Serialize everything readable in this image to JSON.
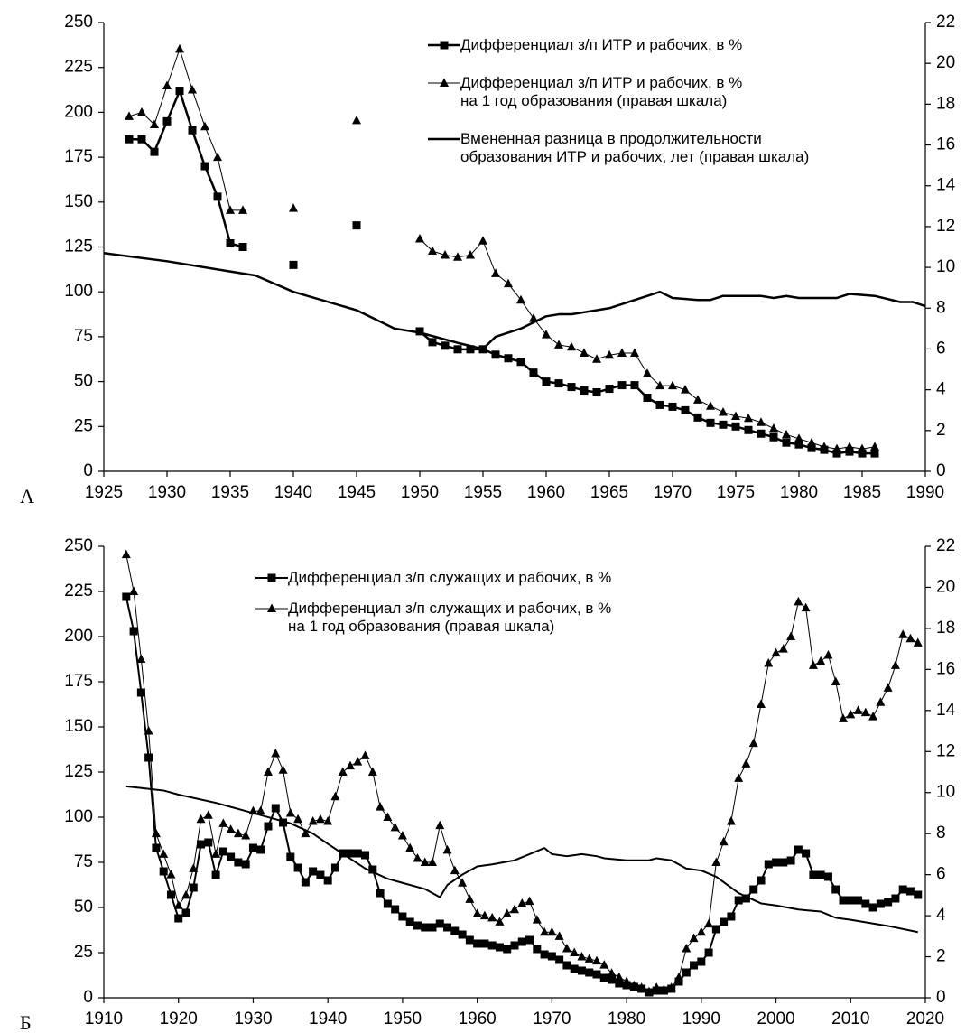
{
  "chart_data": [
    {
      "type": "line",
      "panel_label": "А",
      "xlim": [
        1925,
        1990
      ],
      "xticks": [
        1925,
        1930,
        1935,
        1940,
        1945,
        1950,
        1955,
        1960,
        1965,
        1970,
        1975,
        1980,
        1985,
        1990
      ],
      "ylim": [
        0,
        250
      ],
      "yticks": [
        0,
        25,
        50,
        75,
        100,
        125,
        150,
        175,
        200,
        225,
        250
      ],
      "y2lim": [
        0,
        22
      ],
      "y2ticks": [
        0,
        2,
        4,
        6,
        8,
        10,
        12,
        14,
        16,
        18,
        20,
        22
      ],
      "grid": false,
      "series": [
        {
          "name": "Дифференциал з/п ИТР и рабочих, в %",
          "color": "#000000",
          "marker": "square",
          "line_width": 2.5,
          "axis": "y",
          "x": [
            1927,
            1928,
            1929,
            1930,
            1931,
            1932,
            1933,
            1934,
            1935,
            1936,
            1937,
            1938,
            1939,
            1940,
            1941,
            1942,
            1943,
            1944,
            1945,
            1946,
            1947,
            1948,
            1949,
            1950,
            1951,
            1952,
            1953,
            1954,
            1955,
            1956,
            1957,
            1958,
            1959,
            1960,
            1961,
            1962,
            1963,
            1964,
            1965,
            1966,
            1967,
            1968,
            1969,
            1970,
            1971,
            1972,
            1973,
            1974,
            1975,
            1976,
            1977,
            1978,
            1979,
            1980,
            1981,
            1982,
            1983,
            1984,
            1985,
            1986
          ],
          "values": [
            185,
            185,
            178,
            195,
            212,
            190,
            170,
            153,
            127,
            125,
            null,
            null,
            null,
            115,
            null,
            null,
            null,
            null,
            137,
            null,
            null,
            null,
            null,
            78,
            72,
            70,
            68,
            68,
            68,
            65,
            63,
            61,
            55,
            50,
            49,
            47,
            45,
            44,
            46,
            48,
            48,
            41,
            37,
            36,
            34,
            30,
            27,
            26,
            25,
            23,
            21,
            19,
            16,
            15,
            13,
            12,
            10,
            11,
            10,
            10
          ]
        },
        {
          "name": "Дифференциал з/п ИТР и рабочих, в %\nна 1 год образования (правая шкала)",
          "color": "#000000",
          "marker": "triangle",
          "line_width": 1,
          "axis": "y2",
          "x": [
            1927,
            1928,
            1929,
            1930,
            1931,
            1932,
            1933,
            1934,
            1935,
            1936,
            1937,
            1938,
            1939,
            1940,
            1941,
            1942,
            1943,
            1944,
            1945,
            1946,
            1947,
            1948,
            1949,
            1950,
            1951,
            1952,
            1953,
            1954,
            1955,
            1956,
            1957,
            1958,
            1959,
            1960,
            1961,
            1962,
            1963,
            1964,
            1965,
            1966,
            1967,
            1968,
            1969,
            1970,
            1971,
            1972,
            1973,
            1974,
            1975,
            1976,
            1977,
            1978,
            1979,
            1980,
            1981,
            1982,
            1983,
            1984,
            1985,
            1986
          ],
          "values": [
            17.4,
            17.6,
            17.0,
            18.9,
            20.7,
            18.7,
            16.9,
            15.4,
            12.8,
            12.8,
            null,
            null,
            null,
            12.9,
            null,
            null,
            null,
            null,
            17.2,
            null,
            null,
            null,
            null,
            11.4,
            10.8,
            10.6,
            10.5,
            10.6,
            11.3,
            9.7,
            9.2,
            8.4,
            7.5,
            6.7,
            6.2,
            6.1,
            5.8,
            5.5,
            5.7,
            5.8,
            5.8,
            4.8,
            4.2,
            4.2,
            4.0,
            3.5,
            3.2,
            2.9,
            2.7,
            2.6,
            2.4,
            2.1,
            1.8,
            1.6,
            1.4,
            1.2,
            1.1,
            1.2,
            1.1,
            1.2
          ]
        },
        {
          "name": "Вмененная разница в продолжительности\nобразования ИТР и рабочих, лет (правая шкала)",
          "color": "#000000",
          "marker": "none",
          "line_width": 2.5,
          "axis": "y2",
          "x": [
            1925,
            1930,
            1935,
            1937,
            1940,
            1945,
            1948,
            1950,
            1953,
            1955,
            1956,
            1958,
            1960,
            1961,
            1962,
            1965,
            1969,
            1970,
            1972,
            1973,
            1974,
            1977,
            1978,
            1979,
            1980,
            1983,
            1984,
            1986,
            1988,
            1989,
            1990
          ],
          "values": [
            10.7,
            10.3,
            9.8,
            9.6,
            8.8,
            7.9,
            7.0,
            6.8,
            6.3,
            6.0,
            6.6,
            7.0,
            7.6,
            7.7,
            7.7,
            8.0,
            8.8,
            8.5,
            8.4,
            8.4,
            8.6,
            8.6,
            8.5,
            8.6,
            8.5,
            8.5,
            8.7,
            8.6,
            8.3,
            8.3,
            8.1
          ]
        }
      ]
    },
    {
      "type": "line",
      "panel_label": "Б",
      "xlim": [
        1910,
        2020
      ],
      "xticks": [
        1910,
        1920,
        1930,
        1940,
        1950,
        1960,
        1970,
        1980,
        1990,
        2000,
        2010,
        2020
      ],
      "ylim": [
        0,
        250
      ],
      "yticks": [
        0,
        25,
        50,
        75,
        100,
        125,
        150,
        175,
        200,
        225,
        250
      ],
      "y2lim": [
        0,
        22
      ],
      "y2ticks": [
        0,
        2,
        4,
        6,
        8,
        10,
        12,
        14,
        16,
        18,
        20,
        22
      ],
      "grid": false,
      "series": [
        {
          "name": "Дифференциал з/п служащих и рабочих, в %",
          "color": "#000000",
          "marker": "square",
          "line_width": 2,
          "axis": "y",
          "x": [
            1913,
            1914,
            1915,
            1916,
            1917,
            1918,
            1919,
            1920,
            1921,
            1922,
            1923,
            1924,
            1925,
            1926,
            1927,
            1928,
            1929,
            1930,
            1931,
            1932,
            1933,
            1934,
            1935,
            1936,
            1937,
            1938,
            1939,
            1940,
            1941,
            1942,
            1943,
            1944,
            1945,
            1946,
            1947,
            1948,
            1949,
            1950,
            1951,
            1952,
            1953,
            1954,
            1955,
            1956,
            1957,
            1958,
            1959,
            1960,
            1961,
            1962,
            1963,
            1964,
            1965,
            1966,
            1967,
            1968,
            1969,
            1970,
            1971,
            1972,
            1973,
            1974,
            1975,
            1976,
            1977,
            1978,
            1979,
            1980,
            1981,
            1982,
            1983,
            1984,
            1985,
            1986,
            1987,
            1988,
            1989,
            1990,
            1991,
            1992,
            1993,
            1994,
            1995,
            1996,
            1997,
            1998,
            1999,
            2000,
            2001,
            2002,
            2003,
            2004,
            2005,
            2006,
            2007,
            2008,
            2009,
            2010,
            2011,
            2012,
            2013,
            2014,
            2015,
            2016,
            2017,
            2018,
            2019
          ],
          "values": [
            222,
            203,
            169,
            133,
            83,
            70,
            57,
            44,
            47,
            61,
            85,
            86,
            68,
            81,
            78,
            75,
            74,
            83,
            82,
            95,
            105,
            97,
            78,
            72,
            64,
            70,
            68,
            65,
            72,
            80,
            80,
            80,
            79,
            71,
            58,
            52,
            49,
            45,
            42,
            40,
            39,
            39,
            41,
            39,
            37,
            35,
            32,
            30,
            30,
            29,
            28,
            27,
            29,
            31,
            32,
            27,
            24,
            23,
            21,
            18,
            16,
            15,
            14,
            13,
            11,
            10,
            8,
            7,
            6,
            5,
            3,
            4,
            4,
            5,
            9,
            14,
            18,
            20,
            25,
            38,
            42,
            45,
            54,
            55,
            60,
            65,
            74,
            75,
            75,
            76,
            82,
            80,
            68,
            68,
            67,
            60,
            54,
            54,
            54,
            52,
            50,
            52,
            53,
            55,
            60,
            59,
            57
          ]
        },
        {
          "name": "Дифференциал з/п служащих и рабочих, в %\nна 1 год образования (правая шкала)",
          "color": "#000000",
          "marker": "triangle",
          "line_width": 1,
          "axis": "y2",
          "x": [
            1913,
            1914,
            1915,
            1916,
            1917,
            1918,
            1919,
            1920,
            1921,
            1922,
            1923,
            1924,
            1925,
            1926,
            1927,
            1928,
            1929,
            1930,
            1931,
            1932,
            1933,
            1934,
            1935,
            1936,
            1937,
            1938,
            1939,
            1940,
            1941,
            1942,
            1943,
            1944,
            1945,
            1946,
            1947,
            1948,
            1949,
            1950,
            1951,
            1952,
            1953,
            1954,
            1955,
            1956,
            1957,
            1958,
            1959,
            1960,
            1961,
            1962,
            1963,
            1964,
            1965,
            1966,
            1967,
            1968,
            1969,
            1970,
            1971,
            1972,
            1973,
            1974,
            1975,
            1976,
            1977,
            1978,
            1979,
            1980,
            1981,
            1982,
            1983,
            1984,
            1985,
            1986,
            1987,
            1988,
            1989,
            1990,
            1991,
            1992,
            1993,
            1994,
            1995,
            1996,
            1997,
            1998,
            1999,
            2000,
            2001,
            2002,
            2003,
            2004,
            2005,
            2006,
            2007,
            2008,
            2009,
            2010,
            2011,
            2012,
            2013,
            2014,
            2015,
            2016,
            2017,
            2018,
            2019
          ],
          "values": [
            21.6,
            19.8,
            16.5,
            13.0,
            8.0,
            7.0,
            6.0,
            4.5,
            5.0,
            6.3,
            8.7,
            8.9,
            7.0,
            8.5,
            8.2,
            8.0,
            7.9,
            9.1,
            9.1,
            11.0,
            11.9,
            11.1,
            9.0,
            8.7,
            8.0,
            8.6,
            8.7,
            8.6,
            9.8,
            11.0,
            11.3,
            11.5,
            11.8,
            11.0,
            9.3,
            8.8,
            8.3,
            7.9,
            7.3,
            6.8,
            6.6,
            6.6,
            8.4,
            7.2,
            6.2,
            5.6,
            4.8,
            4.1,
            4.0,
            3.9,
            3.7,
            4.1,
            4.3,
            4.6,
            4.7,
            3.8,
            3.2,
            3.2,
            3.0,
            2.4,
            2.2,
            2.0,
            1.9,
            1.8,
            1.6,
            1.2,
            1.0,
            0.8,
            0.6,
            0.5,
            0.3,
            0.5,
            0.4,
            0.5,
            1.0,
            2.4,
            2.9,
            3.2,
            3.6,
            6.6,
            7.6,
            8.6,
            10.7,
            11.4,
            12.4,
            14.3,
            16.3,
            16.8,
            17.0,
            17.6,
            19.3,
            19.0,
            16.2,
            16.4,
            16.7,
            15.4,
            13.6,
            13.8,
            14.0,
            13.9,
            13.7,
            14.4,
            15.1,
            16.2,
            17.7,
            17.5,
            17.3
          ]
        },
        {
          "color": "#000000",
          "marker": "none",
          "line_width": 2,
          "axis": "y2",
          "x": [
            1913,
            1918,
            1920,
            1925,
            1930,
            1935,
            1938,
            1940,
            1945,
            1948,
            1950,
            1953,
            1955,
            1956,
            1958,
            1960,
            1962,
            1965,
            1967,
            1969,
            1970,
            1972,
            1974,
            1976,
            1977,
            1980,
            1983,
            1984,
            1986,
            1988,
            1990,
            1992,
            1995,
            1998,
            2000,
            2003,
            2006,
            2008,
            2010,
            2015,
            2019
          ],
          "values": [
            10.3,
            10.1,
            9.9,
            9.5,
            9.0,
            8.5,
            8.0,
            7.5,
            6.3,
            5.8,
            5.6,
            5.3,
            4.9,
            5.5,
            6.0,
            6.4,
            6.5,
            6.7,
            7.0,
            7.3,
            7.0,
            6.9,
            7.0,
            6.9,
            6.8,
            6.7,
            6.7,
            6.8,
            6.7,
            6.3,
            6.2,
            5.9,
            5.1,
            4.6,
            4.5,
            4.3,
            4.2,
            3.9,
            3.8,
            3.5,
            3.2
          ]
        }
      ]
    }
  ]
}
